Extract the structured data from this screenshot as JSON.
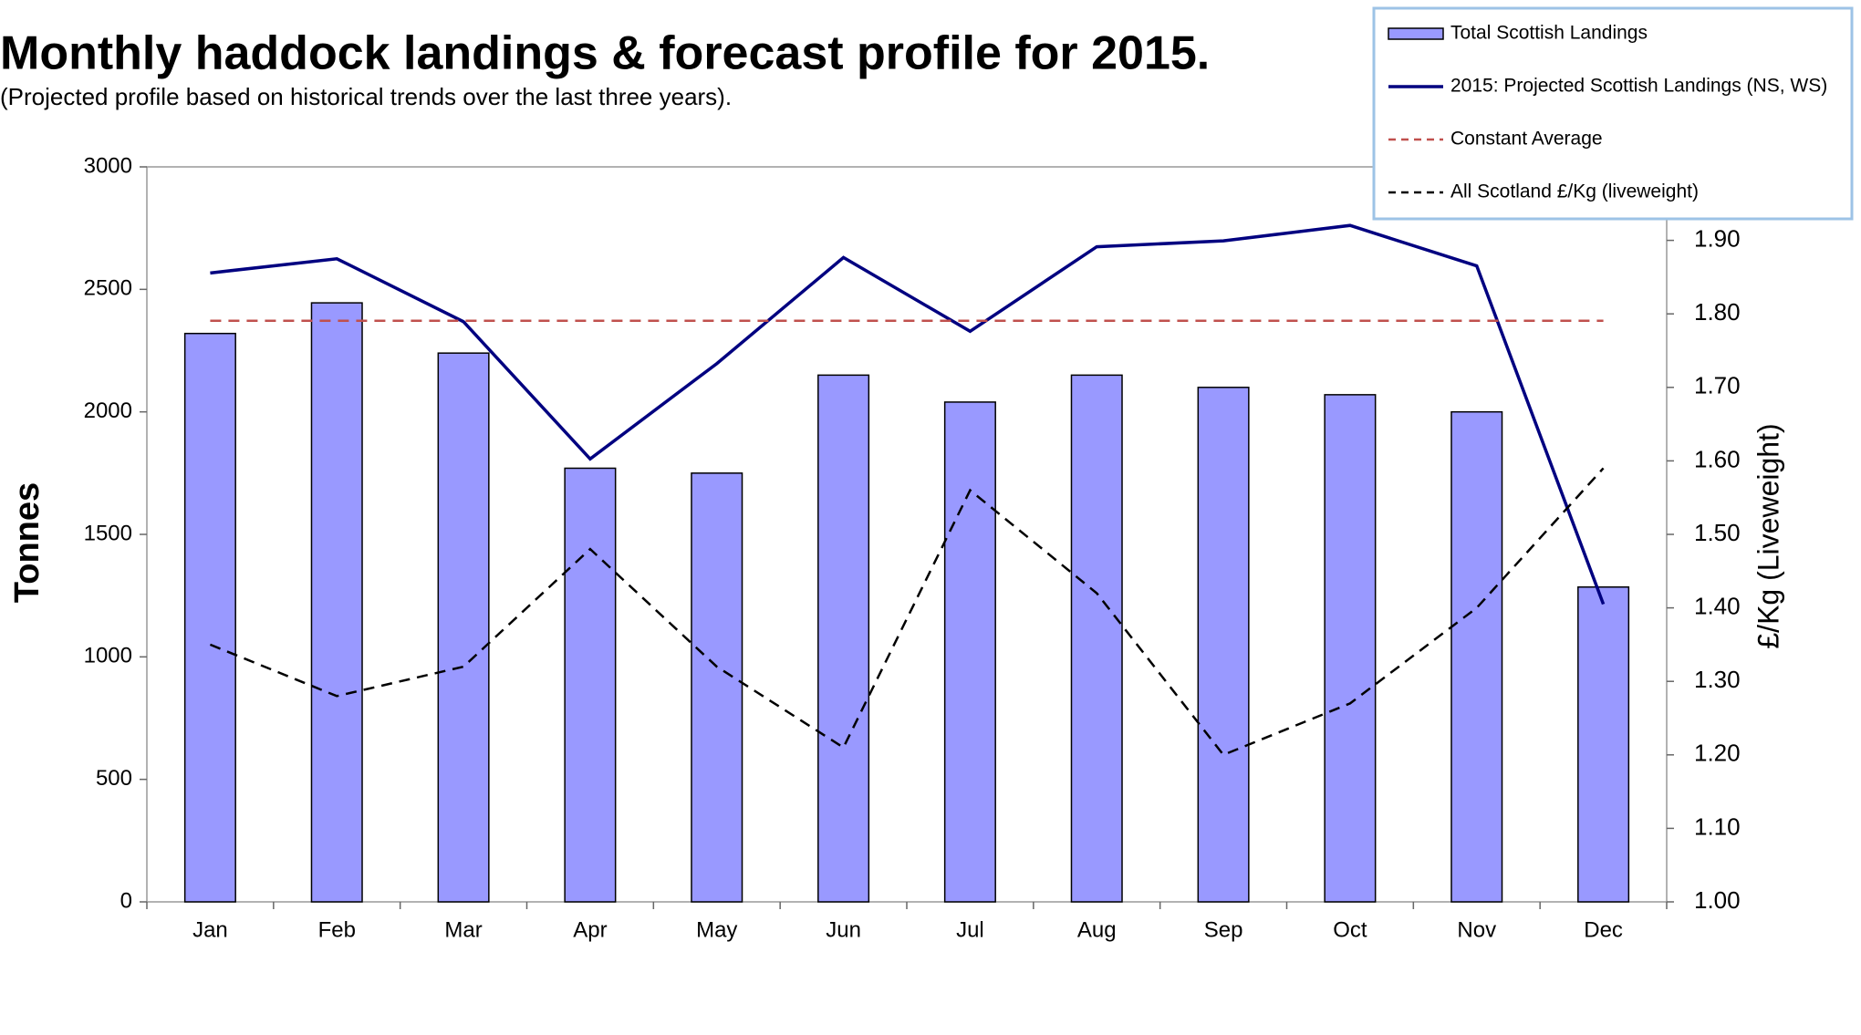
{
  "chart_data": {
    "type": "bar",
    "title": "Monthly haddock landings & forecast profile for 2015.",
    "subtitle": "(Projected profile based on historical trends over the last three years).",
    "y_label": "Tonnes",
    "y2_label": "£/Kg (Liveweight)",
    "categories": [
      "Jan",
      "Feb",
      "Mar",
      "Apr",
      "May",
      "Jun",
      "Jul",
      "Aug",
      "Sep",
      "Oct",
      "Nov",
      "Dec"
    ],
    "series": [
      {
        "name": "Total Scottish Landings",
        "type": "bar",
        "color": "#9999ff",
        "values": [
          2320,
          2445,
          2240,
          1770,
          1750,
          2150,
          2040,
          2150,
          2100,
          2070,
          2000,
          1285
        ]
      },
      {
        "name": "2015: Projected Scottish Landings (NS, WS)",
        "type": "line",
        "color": "#000080",
        "dash": "solid",
        "values": [
          2567,
          2625,
          2368,
          1808,
          2197,
          2630,
          2329,
          2674,
          2698,
          2761,
          2596,
          1215
        ]
      },
      {
        "name": "Constant Average",
        "type": "line",
        "color": "#c0504d",
        "dash": "dashed",
        "values": [
          2372,
          2372,
          2372,
          2372,
          2372,
          2372,
          2372,
          2372,
          2372,
          2372,
          2372,
          2372
        ]
      },
      {
        "name": "All Scotland £/Kg (liveweight)",
        "type": "line",
        "color": "#000000",
        "dash": "dashed",
        "axis": "y2",
        "values": [
          1.35,
          1.28,
          1.32,
          1.48,
          1.32,
          1.21,
          1.56,
          1.42,
          1.2,
          1.27,
          1.4,
          1.59
        ]
      }
    ],
    "ylim": [
      0,
      3000
    ],
    "yticks": [
      0,
      500,
      1000,
      1500,
      2000,
      2500,
      3000
    ],
    "y2lim": [
      1,
      2
    ],
    "y2ticks": [
      {
        "value": 1,
        "label": "1.00"
      },
      {
        "value": 1.1,
        "label": "1.10"
      },
      {
        "value": 1.2,
        "label": "1.20"
      },
      {
        "value": 1.3,
        "label": "1.30"
      },
      {
        "value": 1.4,
        "label": "1.40"
      },
      {
        "value": 1.5,
        "label": "1.50"
      },
      {
        "value": 1.6,
        "label": "1.60"
      },
      {
        "value": 1.7,
        "label": "1.70"
      },
      {
        "value": 1.8,
        "label": "1.80"
      },
      {
        "value": 1.9,
        "label": "1.90"
      }
    ],
    "grid": false,
    "legend": "top-right"
  }
}
